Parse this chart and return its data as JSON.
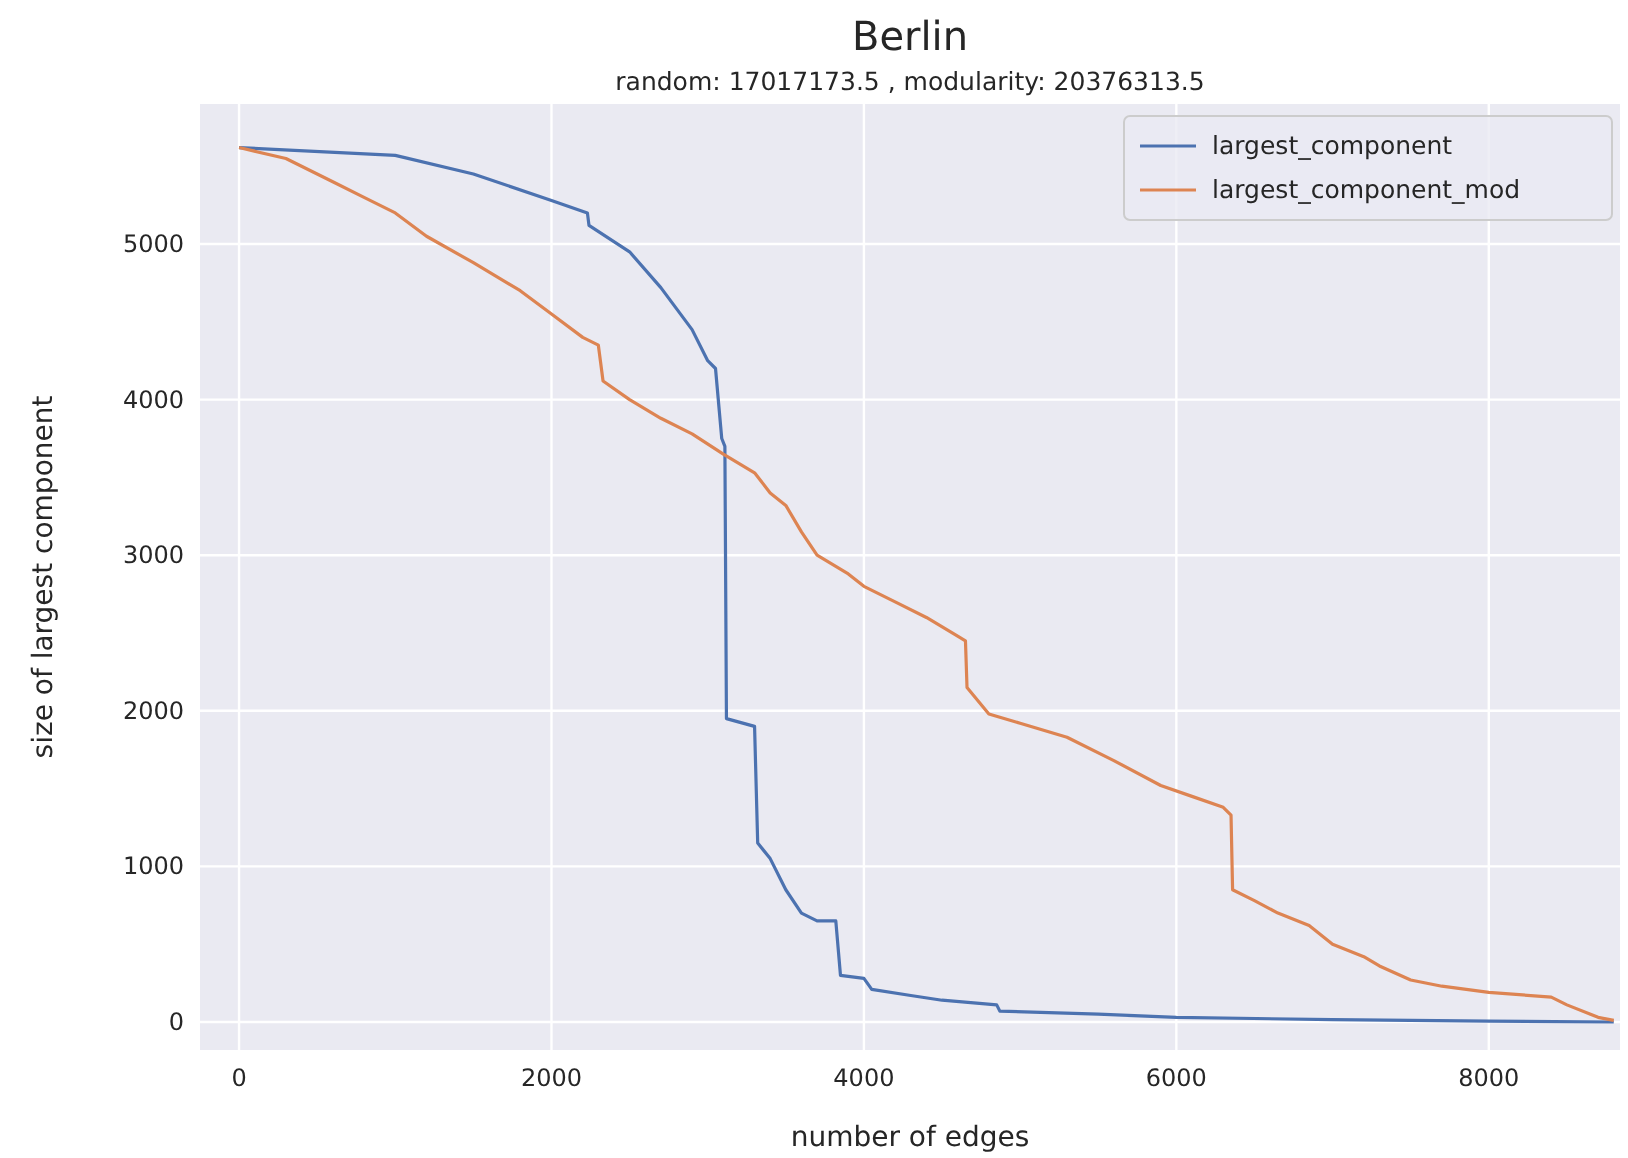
{
  "chart_data": {
    "type": "line",
    "title": "Berlin",
    "subtitle": "random: 17017173.5 , modularity: 20376313.5",
    "xlabel": "number of edges",
    "ylabel": "size of largest component",
    "xlim": [
      -250,
      8840
    ],
    "ylim": [
      -180,
      5900
    ],
    "xticks": [
      0,
      2000,
      4000,
      6000,
      8000
    ],
    "yticks": [
      0,
      1000,
      2000,
      3000,
      4000,
      5000
    ],
    "grid": true,
    "legend": "top right",
    "line_style": "solid",
    "marker": "none",
    "series": [
      {
        "name": "largest_component",
        "color": "#4c72b0",
        "x": [
          0,
          1000,
          1500,
          2000,
          2230,
          2240,
          2500,
          2700,
          2900,
          3000,
          3050,
          3090,
          3110,
          3120,
          3300,
          3320,
          3400,
          3500,
          3600,
          3700,
          3820,
          3850,
          4000,
          4050,
          4300,
          4500,
          4850,
          4870,
          5500,
          6000,
          7000,
          8000,
          8800
        ],
        "values": [
          5620,
          5570,
          5450,
          5280,
          5200,
          5120,
          4950,
          4720,
          4450,
          4250,
          4200,
          3750,
          3700,
          1950,
          1900,
          1150,
          1050,
          850,
          700,
          650,
          650,
          300,
          280,
          210,
          170,
          140,
          110,
          70,
          50,
          30,
          15,
          5,
          0
        ]
      },
      {
        "name": "largest_component_mod",
        "color": "#dd8452",
        "x": [
          0,
          300,
          600,
          800,
          1000,
          1200,
          1500,
          1800,
          2000,
          2200,
          2300,
          2330,
          2500,
          2700,
          2900,
          3100,
          3300,
          3400,
          3500,
          3600,
          3700,
          3900,
          4000,
          4200,
          4400,
          4600,
          4650,
          4660,
          4800,
          5000,
          5300,
          5600,
          5900,
          6100,
          6300,
          6350,
          6360,
          6500,
          6650,
          6850,
          7000,
          7200,
          7300,
          7500,
          7700,
          8000,
          8400,
          8500,
          8700,
          8800
        ],
        "values": [
          5620,
          5550,
          5400,
          5300,
          5200,
          5050,
          4880,
          4700,
          4550,
          4400,
          4350,
          4120,
          4000,
          3880,
          3780,
          3650,
          3530,
          3400,
          3320,
          3150,
          3000,
          2880,
          2800,
          2700,
          2600,
          2480,
          2450,
          2150,
          1980,
          1920,
          1830,
          1680,
          1520,
          1450,
          1380,
          1330,
          850,
          780,
          700,
          620,
          500,
          420,
          360,
          270,
          230,
          190,
          160,
          110,
          30,
          10
        ]
      }
    ]
  }
}
